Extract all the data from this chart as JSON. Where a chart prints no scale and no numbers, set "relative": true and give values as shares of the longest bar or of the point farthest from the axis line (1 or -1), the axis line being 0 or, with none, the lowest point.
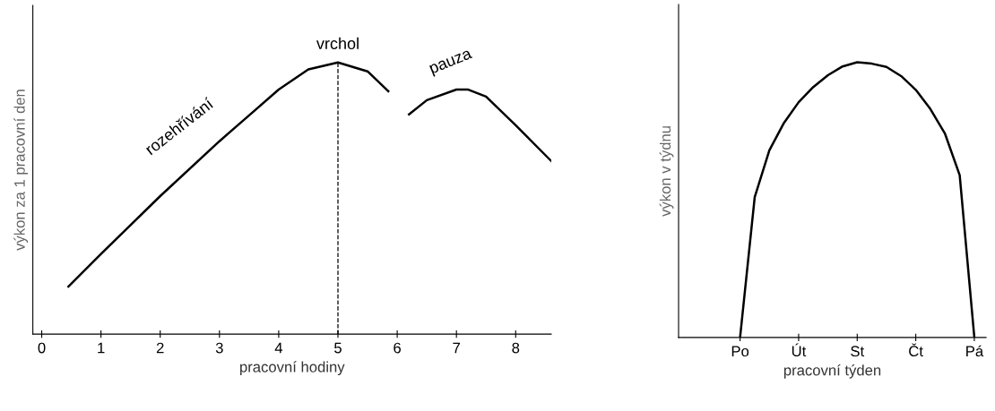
{
  "chart_data": [
    {
      "type": "line",
      "xlabel": "pracovní hodiny",
      "ylabel": "výkon za 1 pracovní den",
      "relative": true,
      "tick_labels": "x",
      "xlim": [
        -0.15,
        8.6
      ],
      "xticks": [
        0,
        1,
        2,
        3,
        4,
        5,
        6,
        7,
        8
      ],
      "series": [
        {
          "color": "#000000",
          "x": [
            0.45,
            1,
            2,
            3,
            3.5,
            4,
            4.5,
            5,
            5.5,
            5.85,
            6.0,
            6.2,
            6.5,
            7,
            7.2,
            7.5,
            8,
            8.6
          ],
          "values": [
            0.175,
            0.295,
            0.508,
            0.71,
            0.805,
            0.9,
            0.974,
            1.0,
            0.967,
            0.894,
            null,
            0.809,
            0.861,
            0.9,
            0.9,
            0.874,
            0.769,
            0.637
          ]
        }
      ],
      "ref_lines": [
        {
          "axis": "x",
          "value": 5,
          "line_style": "dashed",
          "color": "#000000"
        }
      ],
      "annotations": [
        {
          "text": "vrchol",
          "x": 5,
          "y": 1.0
        },
        {
          "text": "rozehřívání",
          "x": 2.5,
          "y": 0.61
        },
        {
          "text": "pauza",
          "x": 6.9,
          "y": 0.9
        }
      ]
    },
    {
      "type": "line",
      "xlabel": "pracovní týden",
      "ylabel": "výkon v týdnu",
      "relative": true,
      "tick_labels": "x",
      "categories": [
        null,
        null,
        null,
        null,
        "Po",
        null,
        null,
        null,
        "Út",
        null,
        null,
        null,
        "St",
        null,
        null,
        null,
        "Čt",
        null,
        null,
        null,
        "Pá"
      ],
      "series": [
        {
          "color": "#000000",
          "values": [
            null,
            null,
            null,
            null,
            0,
            0.51,
            0.68,
            0.78,
            0.855,
            0.91,
            0.953,
            0.985,
            1.0,
            0.995,
            0.983,
            0.95,
            0.9,
            0.83,
            0.74,
            0.59,
            0
          ]
        }
      ]
    }
  ]
}
